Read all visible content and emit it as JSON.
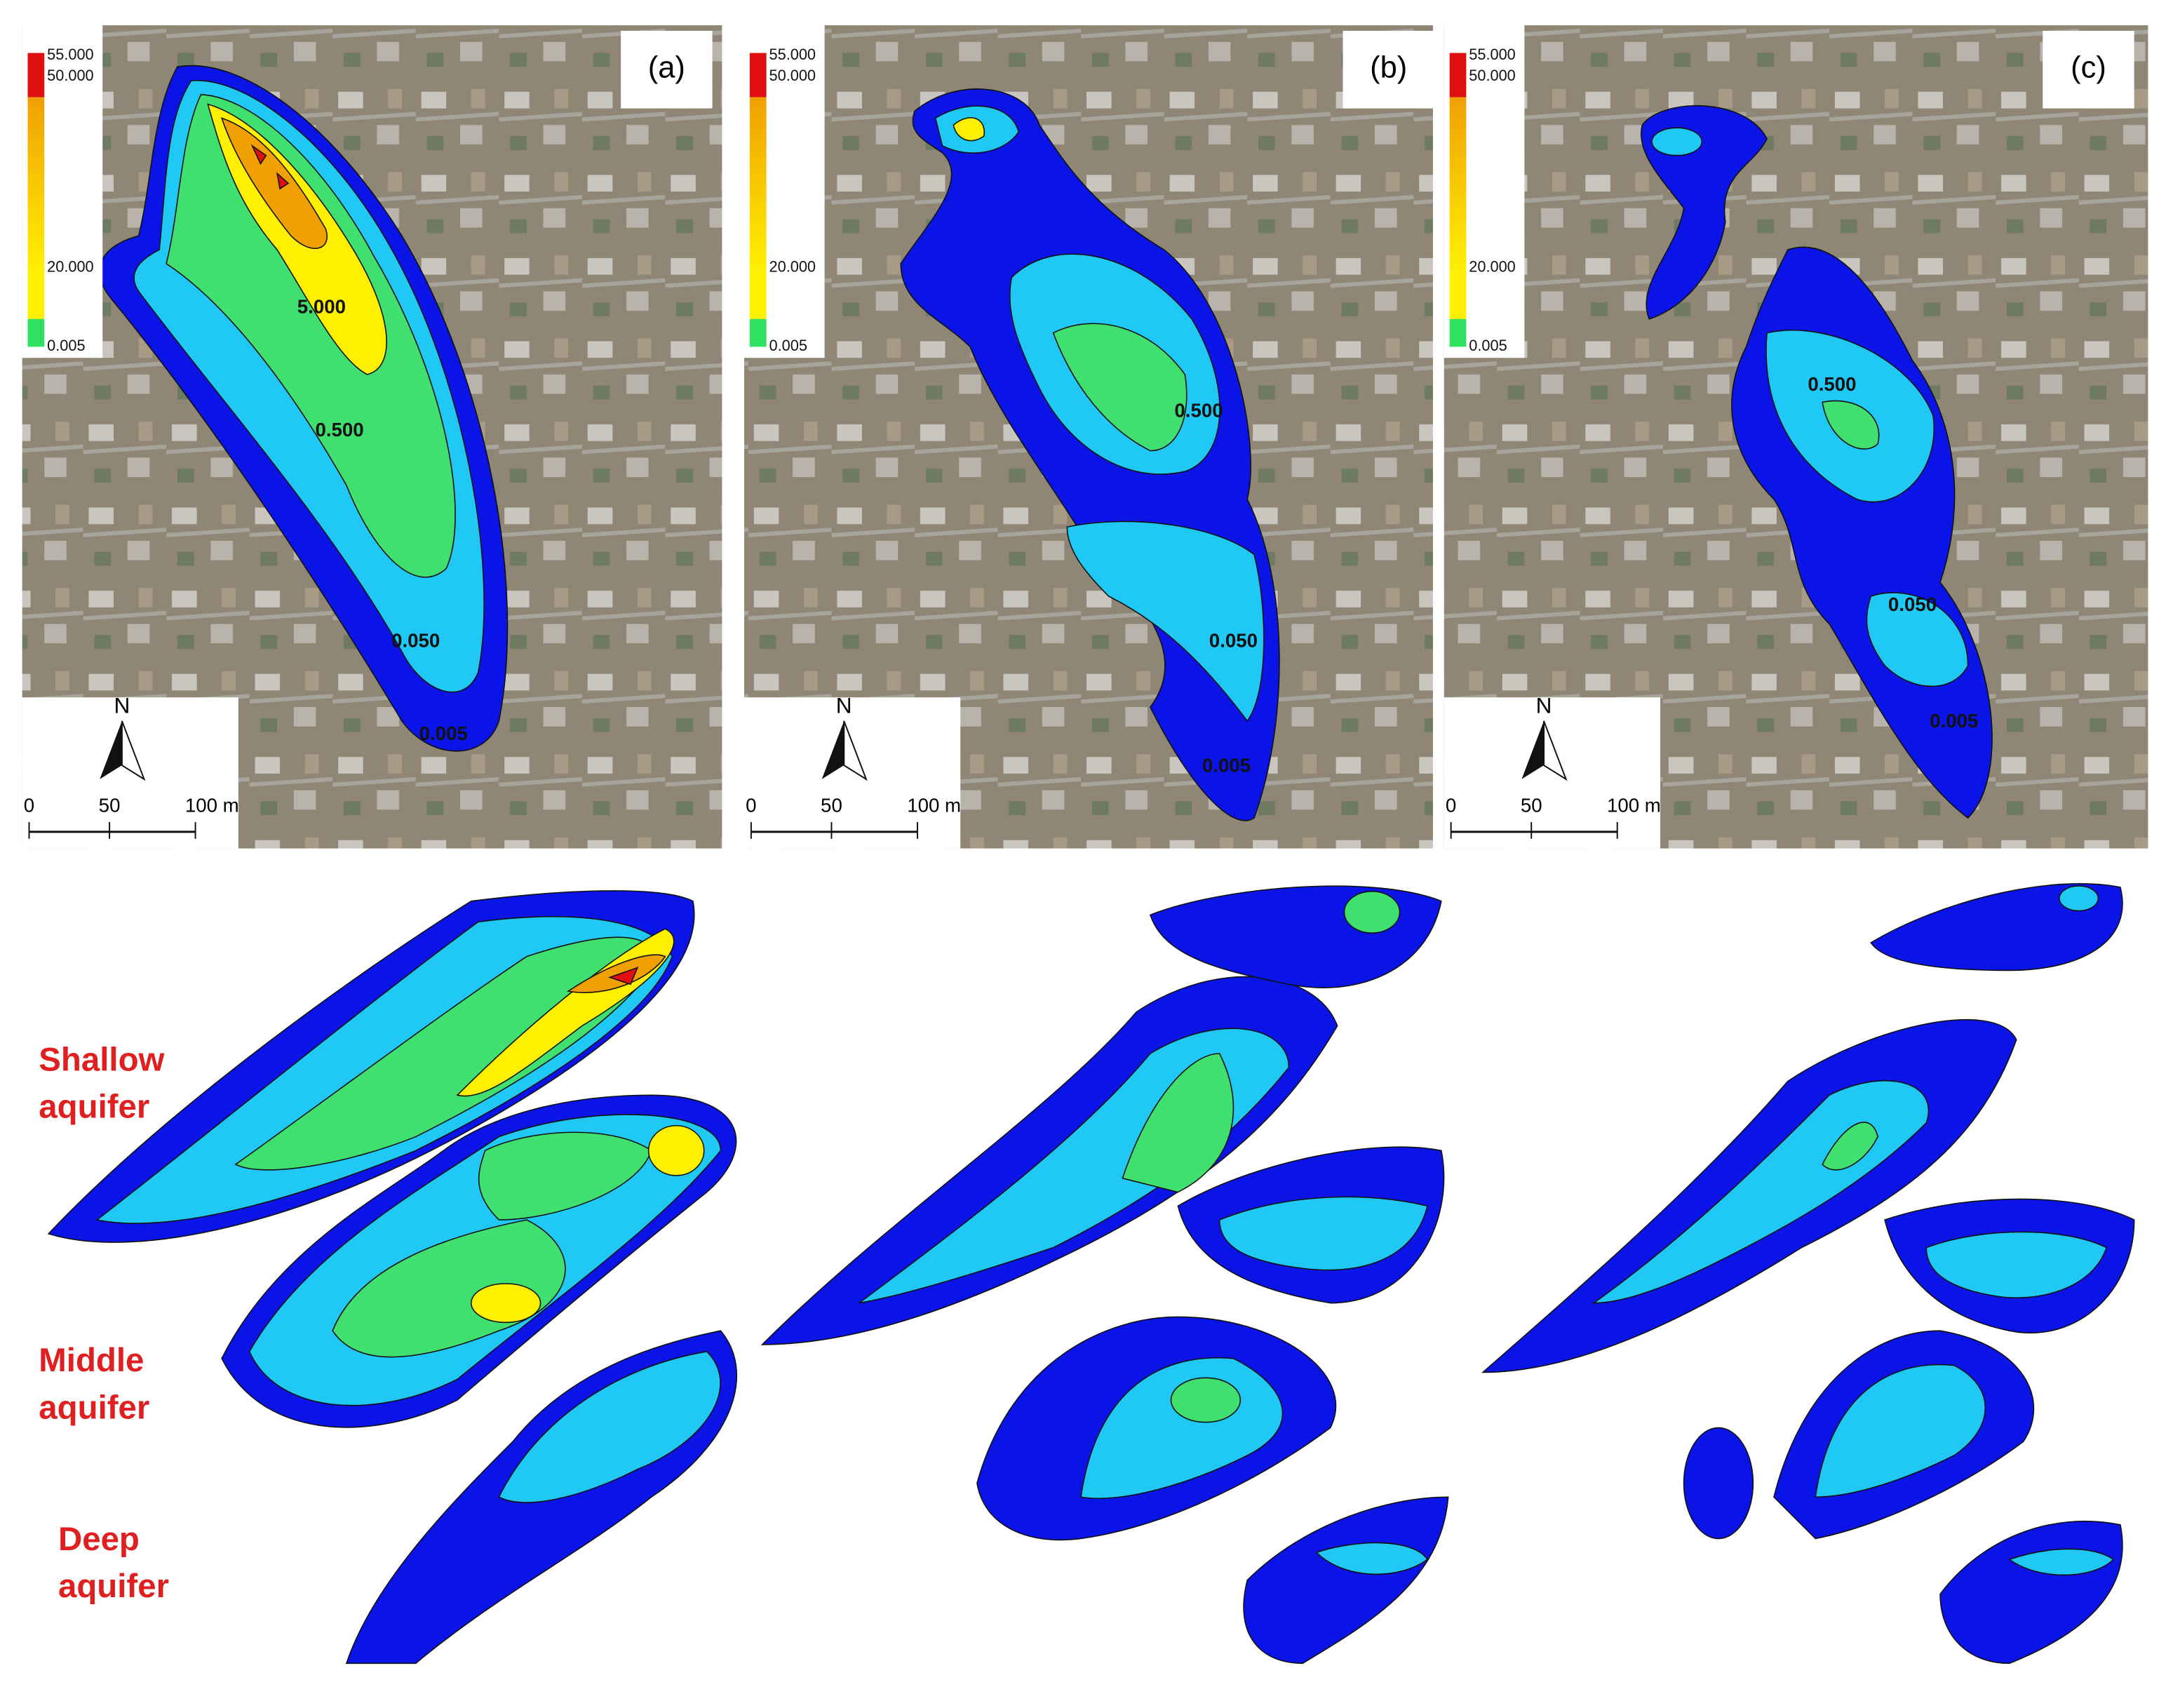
{
  "panels": [
    {
      "label": "(a)",
      "legend": [
        "55.000",
        "50.000",
        "20.000",
        "0.005"
      ],
      "contour_labels": [
        "5.000",
        "0.500",
        "0.050",
        "0.005"
      ],
      "north": "N",
      "scale": [
        "0",
        "50",
        "100 m"
      ]
    },
    {
      "label": "(b)",
      "legend": [
        "55.000",
        "50.000",
        "20.000",
        "0.005"
      ],
      "contour_labels": [
        "0.500",
        "0.050",
        "0.005"
      ],
      "north": "N",
      "scale": [
        "0",
        "50",
        "100 m"
      ]
    },
    {
      "label": "(c)",
      "legend": [
        "55.000",
        "50.000",
        "20.000",
        "0.005"
      ],
      "contour_labels": [
        "0.500",
        "0.050",
        "0.005"
      ],
      "north": "N",
      "scale": [
        "0",
        "50",
        "100 m"
      ]
    }
  ],
  "aquifers": [
    [
      "Shallow",
      "aquifer"
    ],
    [
      "Middle",
      "aquifer"
    ],
    [
      "Deep",
      "aquifer"
    ]
  ]
}
